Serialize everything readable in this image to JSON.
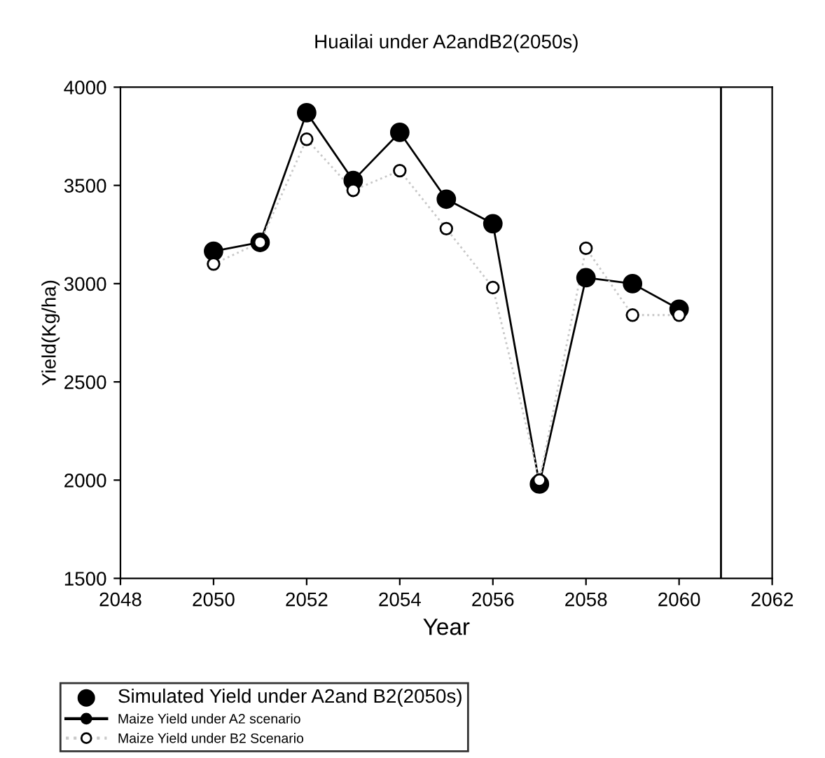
{
  "chart_data": {
    "type": "line",
    "title": "Huailai under A2andB2(2050s)",
    "xlabel": "Year",
    "ylabel": "Yield(Kg/ha)",
    "x": [
      2050,
      2051,
      2052,
      2053,
      2054,
      2055,
      2056,
      2057,
      2058,
      2059,
      2060
    ],
    "series": [
      {
        "name": "Maize Yield under A2 scenario",
        "color": "#000000",
        "marker": "circle",
        "line_style": "solid",
        "values": [
          3165,
          3210,
          3870,
          3525,
          3770,
          3430,
          3305,
          1980,
          3030,
          3000,
          2870
        ]
      },
      {
        "name": "Maize Yield under B2 Scenario",
        "color": "#c8c8c8",
        "marker": "circle",
        "line_style": "dotted",
        "values": [
          3100,
          3210,
          3735,
          3475,
          3575,
          3280,
          2980,
          2000,
          3180,
          2840,
          2840
        ]
      }
    ],
    "legend_title": "Simulated Yield under A2and B2(2050s)",
    "legend": "bottom",
    "xlim": [
      2048,
      2062
    ],
    "xticks": [
      2048,
      2050,
      2052,
      2054,
      2056,
      2058,
      2060,
      2062
    ],
    "ylim": [
      1500,
      4000
    ],
    "yticks": [
      1500,
      2000,
      2500,
      3000,
      3500,
      4000
    ],
    "ref_lines": [
      {
        "axis": "x",
        "value": 2060.9,
        "color": "#000000"
      }
    ],
    "grid": false
  }
}
